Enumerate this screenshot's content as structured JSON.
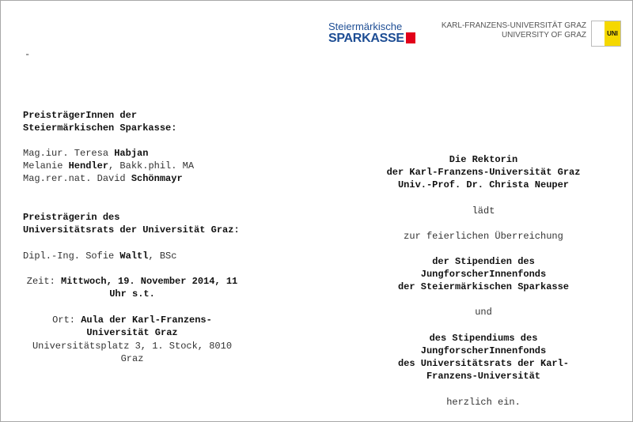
{
  "logos": {
    "sparkasse_line1": "Steiermärkische",
    "sparkasse_line2": "SPARKASSE",
    "university_line1": "KARL-FRANZENS-UNIVERSITÄT GRAZ",
    "university_line2": "UNIVERSITY OF GRAZ",
    "uni_mark": "UNI"
  },
  "dash": "-",
  "left": {
    "heading1": [
      "PreisträgerInnen der",
      "Steiermärkischen Sparkasse:"
    ],
    "winners1": [
      {
        "pre": "Mag.iur. Teresa ",
        "name": "Habjan",
        "post": ""
      },
      {
        "pre": "Melanie ",
        "name": "Hendler",
        "post": ", Bakk.phil. MA"
      },
      {
        "pre": "Mag.rer.nat. David ",
        "name": "Schönmayr",
        "post": ""
      }
    ],
    "heading2": [
      "Preisträgerin des",
      "Universitätsrats der Universität Graz:"
    ],
    "winner2": {
      "pre": "Dipl.-Ing. Sofie ",
      "name": "Waltl",
      "post": ", BSc"
    },
    "time_label": "Zeit:",
    "time_value1": " Mittwoch, 19. November 2014, 11",
    "time_value2": "Uhr s.t.",
    "place_label": "Ort:",
    "place_value1": " Aula der Karl-Franzens-",
    "place_value2": "Universität Graz",
    "address1": "Universitätsplatz 3, 1. Stock, 8010",
    "address2": "Graz"
  },
  "right": {
    "host": [
      "Die Rektorin",
      "der Karl-Franzens-Universität Graz",
      "Univ.-Prof. Dr. Christa Neuper"
    ],
    "invites": "lädt",
    "occasion": "zur feierlichen Überreichung",
    "award1": [
      "der Stipendien des",
      "JungforscherInnenfonds",
      "der Steiermärkischen Sparkasse"
    ],
    "and": "und",
    "award2": [
      "des Stipendiums des",
      "JungforscherInnenfonds",
      "des Universitätsrats der Karl-",
      "Franzens-Universität"
    ],
    "closing": "herzlich ein."
  }
}
